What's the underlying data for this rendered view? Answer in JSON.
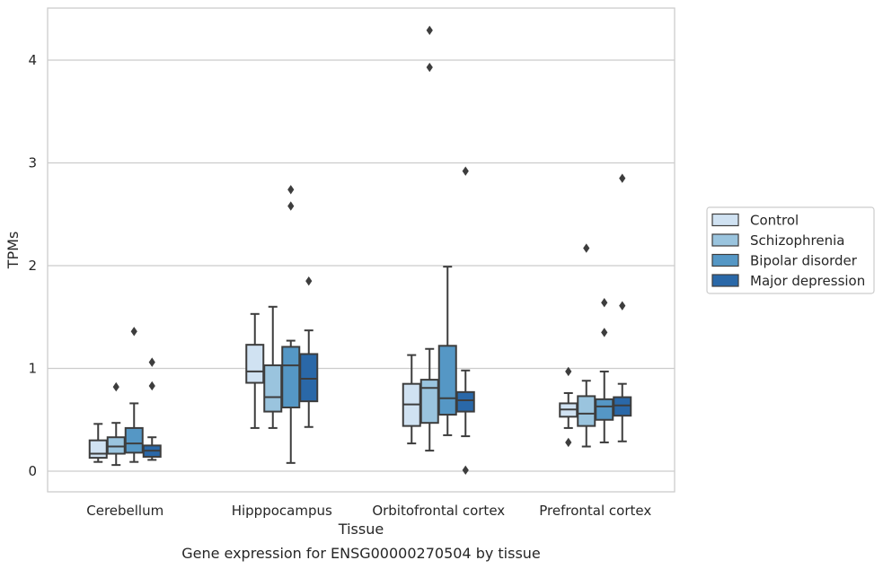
{
  "chart_data": {
    "type": "box",
    "caption": "Gene expression for ENSG00000270504 by tissue",
    "xlabel": "Tissue",
    "ylabel": "TPMs",
    "ylim": [
      -0.18,
      4.5
    ],
    "yticks": [
      0,
      1,
      2,
      3,
      4
    ],
    "grid": true,
    "legend_position": "right",
    "categories": [
      "Cerebellum",
      "Hipppocampus",
      "Orbitofrontal cortex",
      "Prefrontal cortex"
    ],
    "series": [
      {
        "name": "Control",
        "color": "#d0e2f2",
        "boxes": [
          {
            "q1": 0.13,
            "median": 0.17,
            "q3": 0.3,
            "whislo": 0.09,
            "whishi": 0.46,
            "fliers": []
          },
          {
            "q1": 0.86,
            "median": 0.97,
            "q3": 1.23,
            "whislo": 0.42,
            "whishi": 1.53,
            "fliers": []
          },
          {
            "q1": 0.44,
            "median": 0.65,
            "q3": 0.85,
            "whislo": 0.27,
            "whishi": 1.13,
            "fliers": []
          },
          {
            "q1": 0.53,
            "median": 0.6,
            "q3": 0.66,
            "whislo": 0.42,
            "whishi": 0.76,
            "fliers": [
              0.97,
              0.28
            ]
          }
        ]
      },
      {
        "name": "Schizophrenia",
        "color": "#9ac4de",
        "boxes": [
          {
            "q1": 0.17,
            "median": 0.24,
            "q3": 0.33,
            "whislo": 0.06,
            "whishi": 0.47,
            "fliers": [
              0.82
            ]
          },
          {
            "q1": 0.58,
            "median": 0.72,
            "q3": 1.03,
            "whislo": 0.42,
            "whishi": 1.6,
            "fliers": []
          },
          {
            "q1": 0.47,
            "median": 0.81,
            "q3": 0.89,
            "whislo": 0.2,
            "whishi": 1.19,
            "fliers": [
              3.93,
              4.29
            ]
          },
          {
            "q1": 0.44,
            "median": 0.56,
            "q3": 0.73,
            "whislo": 0.24,
            "whishi": 0.88,
            "fliers": [
              2.17
            ]
          }
        ]
      },
      {
        "name": "Bipolar disorder",
        "color": "#5597c5",
        "boxes": [
          {
            "q1": 0.18,
            "median": 0.27,
            "q3": 0.42,
            "whislo": 0.09,
            "whishi": 0.66,
            "fliers": [
              1.36
            ]
          },
          {
            "q1": 0.62,
            "median": 1.03,
            "q3": 1.21,
            "whislo": 0.08,
            "whishi": 1.27,
            "fliers": [
              2.74,
              2.58
            ]
          },
          {
            "q1": 0.55,
            "median": 0.71,
            "q3": 1.22,
            "whislo": 0.35,
            "whishi": 1.99,
            "fliers": []
          },
          {
            "q1": 0.5,
            "median": 0.63,
            "q3": 0.7,
            "whislo": 0.28,
            "whishi": 0.97,
            "fliers": [
              1.64,
              1.35
            ]
          }
        ]
      },
      {
        "name": "Major depression",
        "color": "#2a68a8",
        "boxes": [
          {
            "q1": 0.14,
            "median": 0.2,
            "q3": 0.25,
            "whislo": 0.11,
            "whishi": 0.33,
            "fliers": [
              1.06,
              0.83
            ]
          },
          {
            "q1": 0.68,
            "median": 0.9,
            "q3": 1.14,
            "whislo": 0.43,
            "whishi": 1.37,
            "fliers": [
              1.85
            ]
          },
          {
            "q1": 0.58,
            "median": 0.69,
            "q3": 0.77,
            "whislo": 0.34,
            "whishi": 0.98,
            "fliers": [
              2.92,
              0.01
            ]
          },
          {
            "q1": 0.54,
            "median": 0.64,
            "q3": 0.72,
            "whislo": 0.29,
            "whishi": 0.85,
            "fliers": [
              2.85,
              1.61
            ]
          }
        ]
      }
    ]
  }
}
